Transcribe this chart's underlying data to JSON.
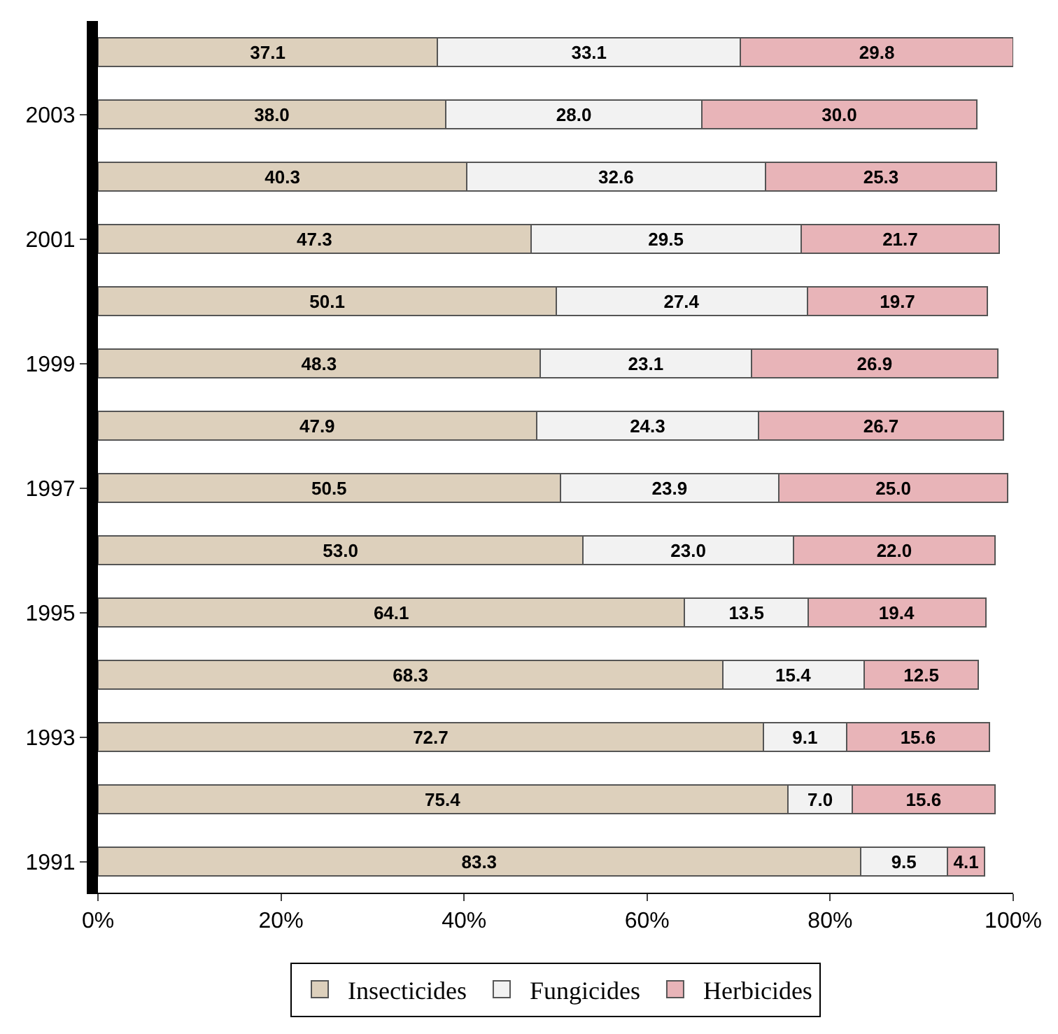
{
  "chart_data": {
    "type": "bar",
    "orientation": "horizontal",
    "stacked": true,
    "categories": [
      null,
      "2003",
      null,
      "2001",
      null,
      "1999",
      null,
      "1997",
      null,
      "1995",
      null,
      "1993",
      null,
      "1991"
    ],
    "series": [
      {
        "name": "Insecticides",
        "color": "#ddd0bc",
        "values": [
          37.1,
          38.0,
          40.3,
          47.3,
          50.1,
          48.3,
          47.9,
          50.5,
          53.0,
          64.1,
          68.3,
          72.7,
          75.4,
          83.3
        ],
        "value_labels": [
          "37.1",
          "38.0",
          "40.3",
          "47.3",
          "50.1",
          "48.3",
          "47.9",
          "50.5",
          "53.0",
          "64.1",
          "68.3",
          "72.7",
          "75.4",
          "83.3"
        ]
      },
      {
        "name": "Fungicides",
        "color": "#f2f2f2",
        "values": [
          33.1,
          28.0,
          32.6,
          29.5,
          27.4,
          23.1,
          24.3,
          23.9,
          23.0,
          13.5,
          15.4,
          9.1,
          7.0,
          9.5
        ],
        "value_labels": [
          "33.1",
          "28.0",
          "32.6",
          "29.5",
          "27.4",
          "23.1",
          "24.3",
          "23.9",
          "23.0",
          "13.5",
          "15.4",
          "9.1",
          "7.0",
          "9.5"
        ]
      },
      {
        "name": "Herbicides",
        "color": "#e8b4b8",
        "values": [
          29.8,
          30.0,
          25.3,
          21.7,
          19.7,
          26.9,
          26.7,
          25.0,
          22.0,
          19.4,
          12.5,
          15.6,
          15.6,
          4.1
        ],
        "value_labels": [
          "29.8",
          "30.0",
          "25.3",
          "21.7",
          "19.7",
          "26.9",
          "26.7",
          "25.0",
          "22.0",
          "19.4",
          "12.5",
          "15.6",
          "15.6",
          "4.1"
        ]
      }
    ],
    "xlim": [
      0,
      100
    ],
    "xticks": [
      {
        "value": 0,
        "label": "0%"
      },
      {
        "value": 20,
        "label": "20%"
      },
      {
        "value": 40,
        "label": "40%"
      },
      {
        "value": 60,
        "label": "60%"
      },
      {
        "value": 80,
        "label": "80%"
      },
      {
        "value": 100,
        "label": "100%"
      }
    ],
    "legend": "bottom"
  }
}
